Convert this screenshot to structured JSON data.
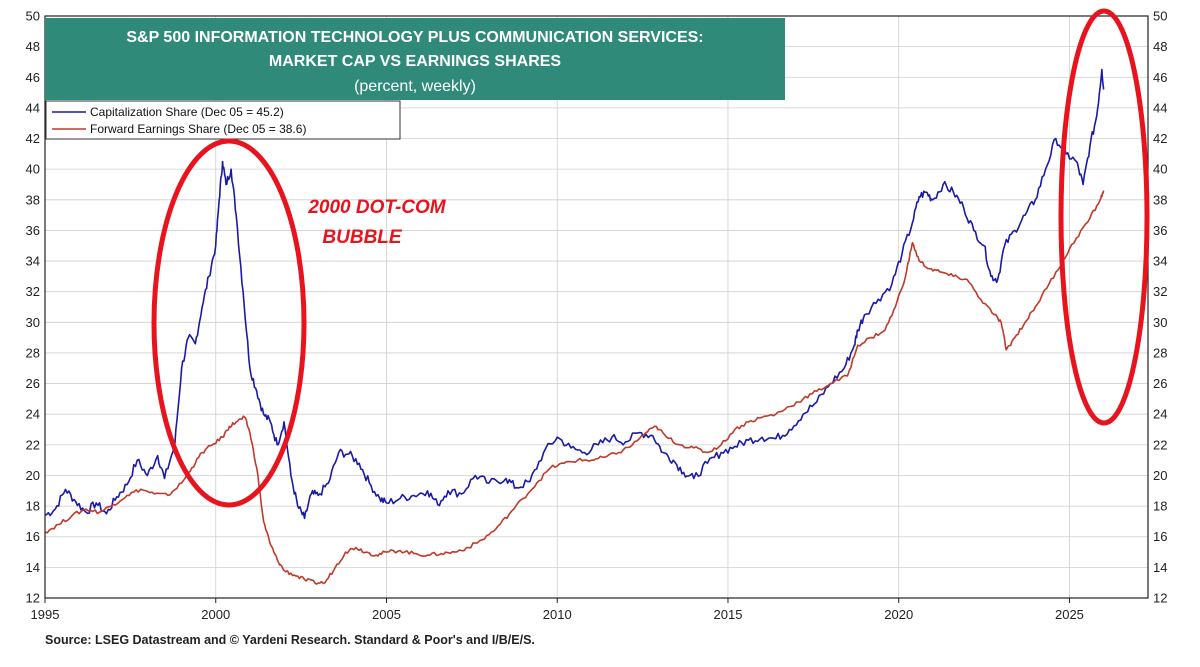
{
  "chart_data": {
    "type": "line",
    "title_lines": [
      "S&P 500 INFORMATION TECHNOLOGY PLUS COMMUNICATION SERVICES:",
      "MARKET CAP VS EARNINGS SHARES",
      "(percent, weekly)"
    ],
    "x_ticks": [
      "1995",
      "2000",
      "2005",
      "2010",
      "2015",
      "2020",
      "2025"
    ],
    "x_range": [
      1995,
      2027.3
    ],
    "ylim": [
      12,
      50
    ],
    "y_ticks": [
      "12",
      "14",
      "16",
      "18",
      "20",
      "22",
      "24",
      "26",
      "28",
      "30",
      "32",
      "34",
      "36",
      "38",
      "40",
      "42",
      "44",
      "46",
      "48",
      "50"
    ],
    "grid": true,
    "legend_position": "top-left",
    "series": [
      {
        "name": "Capitalization Share",
        "legend_label": "Capitalization Share  (Dec 05 = 45.2)",
        "color": "#1a1aa8",
        "points": [
          [
            1995.0,
            17.4
          ],
          [
            1995.3,
            17.8
          ],
          [
            1995.6,
            19.1
          ],
          [
            1995.9,
            18.3
          ],
          [
            1996.2,
            17.6
          ],
          [
            1996.5,
            18.2
          ],
          [
            1996.8,
            17.5
          ],
          [
            1997.1,
            18.6
          ],
          [
            1997.4,
            19.4
          ],
          [
            1997.7,
            21.0
          ],
          [
            1998.0,
            20.0
          ],
          [
            1998.3,
            21.3
          ],
          [
            1998.5,
            19.8
          ],
          [
            1998.8,
            22.0
          ],
          [
            1999.0,
            27.0
          ],
          [
            1999.2,
            29.0
          ],
          [
            1999.4,
            28.6
          ],
          [
            1999.6,
            31.0
          ],
          [
            1999.8,
            33.0
          ],
          [
            2000.0,
            35.0
          ],
          [
            2000.1,
            38.0
          ],
          [
            2000.2,
            40.5
          ],
          [
            2000.3,
            39.0
          ],
          [
            2000.45,
            40.0
          ],
          [
            2000.6,
            37.0
          ],
          [
            2000.8,
            32.0
          ],
          [
            2001.0,
            27.0
          ],
          [
            2001.2,
            25.5
          ],
          [
            2001.4,
            24.0
          ],
          [
            2001.6,
            23.5
          ],
          [
            2001.8,
            22.0
          ],
          [
            2002.0,
            23.5
          ],
          [
            2002.2,
            20.0
          ],
          [
            2002.4,
            18.0
          ],
          [
            2002.6,
            17.2
          ],
          [
            2002.8,
            18.8
          ],
          [
            2003.0,
            18.7
          ],
          [
            2003.3,
            19.5
          ],
          [
            2003.6,
            21.5
          ],
          [
            2003.9,
            21.4
          ],
          [
            2004.2,
            20.8
          ],
          [
            2004.5,
            19.5
          ],
          [
            2004.8,
            18.5
          ],
          [
            2005.0,
            18.2
          ],
          [
            2005.4,
            18.5
          ],
          [
            2005.8,
            18.7
          ],
          [
            2006.2,
            19.0
          ],
          [
            2006.5,
            18.1
          ],
          [
            2006.8,
            19.0
          ],
          [
            2007.2,
            18.8
          ],
          [
            2007.6,
            20.0
          ],
          [
            2008.0,
            19.5
          ],
          [
            2008.5,
            19.8
          ],
          [
            2008.8,
            19.2
          ],
          [
            2009.2,
            19.6
          ],
          [
            2009.6,
            21.5
          ],
          [
            2010.0,
            22.5
          ],
          [
            2010.4,
            21.8
          ],
          [
            2010.8,
            21.5
          ],
          [
            2011.2,
            22.0
          ],
          [
            2011.6,
            22.5
          ],
          [
            2012.0,
            22.2
          ],
          [
            2012.4,
            22.8
          ],
          [
            2012.8,
            22.6
          ],
          [
            2013.1,
            21.5
          ],
          [
            2013.4,
            21.0
          ],
          [
            2013.7,
            20.2
          ],
          [
            2014.0,
            19.8
          ],
          [
            2014.4,
            20.8
          ],
          [
            2014.8,
            21.5
          ],
          [
            2015.2,
            21.9
          ],
          [
            2015.6,
            22.3
          ],
          [
            2016.0,
            22.5
          ],
          [
            2016.4,
            22.4
          ],
          [
            2016.8,
            23.0
          ],
          [
            2017.2,
            24.0
          ],
          [
            2017.6,
            24.8
          ],
          [
            2018.0,
            26.0
          ],
          [
            2018.4,
            27.0
          ],
          [
            2018.7,
            28.5
          ],
          [
            2018.8,
            29.5
          ],
          [
            2019.0,
            30.5
          ],
          [
            2019.4,
            31.5
          ],
          [
            2019.8,
            32.5
          ],
          [
            2020.1,
            34.5
          ],
          [
            2020.4,
            36.5
          ],
          [
            2020.6,
            38.2
          ],
          [
            2020.8,
            38.5
          ],
          [
            2021.0,
            38.0
          ],
          [
            2021.3,
            39.0
          ],
          [
            2021.6,
            38.5
          ],
          [
            2021.9,
            37.5
          ],
          [
            2022.2,
            36.0
          ],
          [
            2022.5,
            35.0
          ],
          [
            2022.7,
            33.0
          ],
          [
            2022.9,
            32.8
          ],
          [
            2023.1,
            35.0
          ],
          [
            2023.4,
            36.0
          ],
          [
            2023.7,
            37.0
          ],
          [
            2024.0,
            38.0
          ],
          [
            2024.3,
            40.0
          ],
          [
            2024.6,
            42.0
          ],
          [
            2024.9,
            41.0
          ],
          [
            2025.2,
            40.5
          ],
          [
            2025.4,
            39.0
          ],
          [
            2025.6,
            41.5
          ],
          [
            2025.8,
            43.5
          ],
          [
            2025.95,
            46.5
          ],
          [
            2026.0,
            45.2
          ]
        ]
      },
      {
        "name": "Forward Earnings Share",
        "legend_label": "Forward Earnings Share (Dec 05 = 38.6)",
        "color": "#c0392b",
        "points": [
          [
            1995.0,
            16.3
          ],
          [
            1995.4,
            16.8
          ],
          [
            1995.8,
            17.4
          ],
          [
            1996.2,
            17.8
          ],
          [
            1996.6,
            17.6
          ],
          [
            1997.0,
            18.1
          ],
          [
            1997.4,
            18.7
          ],
          [
            1997.8,
            19.1
          ],
          [
            1998.2,
            18.8
          ],
          [
            1998.6,
            18.7
          ],
          [
            1999.0,
            19.5
          ],
          [
            1999.3,
            20.5
          ],
          [
            1999.6,
            21.5
          ],
          [
            1999.9,
            22.0
          ],
          [
            2000.2,
            22.5
          ],
          [
            2000.4,
            23.2
          ],
          [
            2000.6,
            23.5
          ],
          [
            2000.85,
            23.8
          ],
          [
            2001.0,
            22.8
          ],
          [
            2001.2,
            20.5
          ],
          [
            2001.4,
            17.0
          ],
          [
            2001.6,
            15.5
          ],
          [
            2001.8,
            14.5
          ],
          [
            2002.0,
            13.8
          ],
          [
            2002.3,
            13.5
          ],
          [
            2002.6,
            13.2
          ],
          [
            2002.9,
            13.0
          ],
          [
            2003.2,
            13.0
          ],
          [
            2003.5,
            14.0
          ],
          [
            2003.8,
            15.0
          ],
          [
            2004.1,
            15.3
          ],
          [
            2004.4,
            15.0
          ],
          [
            2004.7,
            14.8
          ],
          [
            2005.0,
            15.0
          ],
          [
            2005.4,
            15.1
          ],
          [
            2005.8,
            14.9
          ],
          [
            2006.2,
            14.8
          ],
          [
            2006.6,
            14.9
          ],
          [
            2007.0,
            15.0
          ],
          [
            2007.4,
            15.3
          ],
          [
            2007.8,
            15.8
          ],
          [
            2008.2,
            16.5
          ],
          [
            2008.6,
            17.5
          ],
          [
            2009.0,
            18.5
          ],
          [
            2009.4,
            19.5
          ],
          [
            2009.8,
            20.5
          ],
          [
            2010.2,
            20.8
          ],
          [
            2010.6,
            21.0
          ],
          [
            2011.0,
            21.0
          ],
          [
            2011.4,
            21.2
          ],
          [
            2011.8,
            21.5
          ],
          [
            2012.2,
            22.0
          ],
          [
            2012.6,
            22.8
          ],
          [
            2012.9,
            23.2
          ],
          [
            2013.2,
            22.5
          ],
          [
            2013.6,
            22.0
          ],
          [
            2014.0,
            21.8
          ],
          [
            2014.4,
            21.5
          ],
          [
            2014.8,
            22.0
          ],
          [
            2015.2,
            23.0
          ],
          [
            2015.6,
            23.5
          ],
          [
            2016.0,
            23.8
          ],
          [
            2016.4,
            24.0
          ],
          [
            2016.8,
            24.5
          ],
          [
            2017.2,
            25.0
          ],
          [
            2017.6,
            25.5
          ],
          [
            2018.0,
            26.0
          ],
          [
            2018.5,
            26.5
          ],
          [
            2018.8,
            28.5
          ],
          [
            2019.2,
            29.0
          ],
          [
            2019.6,
            29.5
          ],
          [
            2019.9,
            31.0
          ],
          [
            2020.2,
            33.0
          ],
          [
            2020.4,
            35.2
          ],
          [
            2020.6,
            34.0
          ],
          [
            2020.9,
            33.5
          ],
          [
            2021.2,
            33.3
          ],
          [
            2021.6,
            33.0
          ],
          [
            2022.0,
            32.8
          ],
          [
            2022.4,
            31.5
          ],
          [
            2022.8,
            30.5
          ],
          [
            2023.0,
            30.0
          ],
          [
            2023.15,
            28.2
          ],
          [
            2023.4,
            29.0
          ],
          [
            2023.7,
            30.0
          ],
          [
            2024.0,
            31.0
          ],
          [
            2024.4,
            32.5
          ],
          [
            2024.8,
            34.0
          ],
          [
            2025.2,
            35.5
          ],
          [
            2025.6,
            36.8
          ],
          [
            2025.9,
            38.0
          ],
          [
            2026.0,
            38.6
          ]
        ]
      }
    ],
    "annotations": [
      {
        "text_lines": [
          "2000 DOT-COM",
          "BUBBLE"
        ],
        "color": "#e8131d"
      }
    ],
    "source": "Source: LSEG Datastream and © Yardeni Research. Standard & Poor's and I/B/E/S."
  }
}
